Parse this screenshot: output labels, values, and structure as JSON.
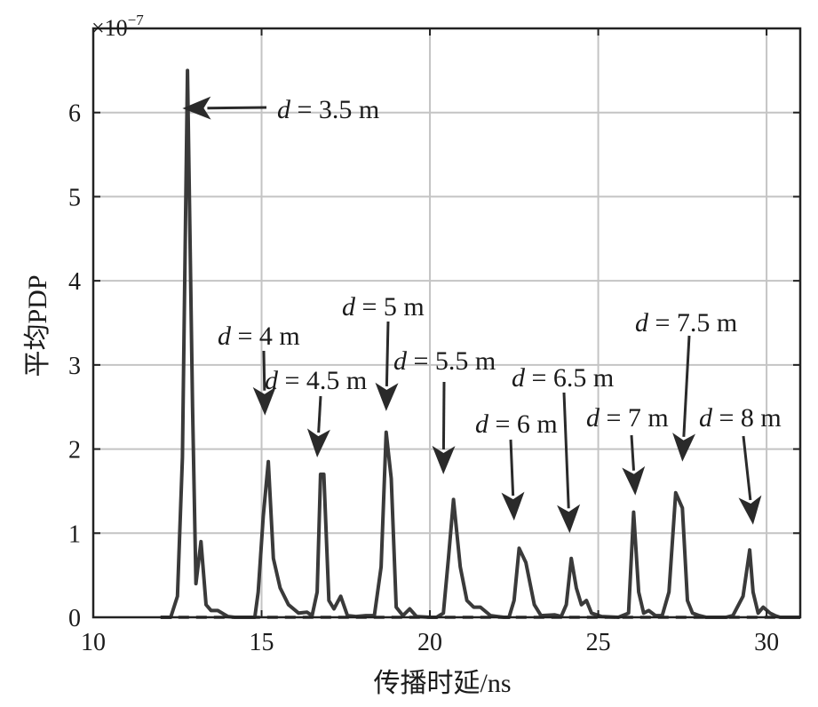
{
  "chart_data": {
    "type": "line",
    "xlabel": "传播时延/ns",
    "ylabel": "平均PDP",
    "y_exponent": "×10",
    "y_exponent_power": "−7",
    "xlim": [
      10,
      31
    ],
    "ylim": [
      0,
      7
    ],
    "grid": true,
    "x_ticks": [
      10,
      15,
      20,
      25,
      30
    ],
    "y_ticks": [
      0,
      1,
      2,
      3,
      4,
      5,
      6
    ],
    "series": [
      {
        "x": [
          12.0,
          12.3,
          12.5,
          12.65,
          12.8,
          12.95,
          13.05,
          13.2,
          13.35,
          13.5,
          13.7,
          14.0,
          14.2,
          14.6,
          14.8,
          14.9,
          15.05,
          15.2,
          15.35,
          15.55,
          15.8,
          16.1,
          16.35,
          16.5,
          16.65,
          16.75,
          16.85,
          17.0,
          17.15,
          17.35,
          17.55,
          17.8,
          18.1,
          18.35,
          18.55,
          18.7,
          18.85,
          19.0,
          19.2,
          19.4,
          19.6,
          20.0,
          20.2,
          20.4,
          20.55,
          20.7,
          20.9,
          21.1,
          21.3,
          21.5,
          21.8,
          22.0,
          22.2,
          22.35,
          22.5,
          22.65,
          22.85,
          23.1,
          23.3,
          23.7,
          23.9,
          24.05,
          24.2,
          24.35,
          24.5,
          24.65,
          24.8,
          25.1,
          25.6,
          25.9,
          26.05,
          26.2,
          26.35,
          26.5,
          26.7,
          26.9,
          27.1,
          27.3,
          27.5,
          27.65,
          27.8,
          28.0,
          28.2,
          28.5,
          28.8,
          29.0,
          29.3,
          29.5,
          29.6,
          29.75,
          29.9,
          30.1,
          30.25,
          30.4,
          30.6,
          31.0
        ],
        "y": [
          0,
          0,
          0.25,
          1.9,
          6.5,
          2.5,
          0.4,
          0.9,
          0.15,
          0.08,
          0.08,
          0.01,
          0,
          0,
          0,
          0.3,
          1.2,
          1.85,
          0.7,
          0.35,
          0.15,
          0.05,
          0.06,
          0.02,
          0.3,
          1.7,
          1.7,
          0.2,
          0.1,
          0.25,
          0.02,
          0.01,
          0.02,
          0.02,
          0.6,
          2.2,
          1.65,
          0.12,
          0.02,
          0.1,
          0.01,
          0,
          0,
          0.05,
          0.7,
          1.4,
          0.6,
          0.2,
          0.12,
          0.12,
          0.02,
          0.01,
          0,
          0,
          0.2,
          0.82,
          0.65,
          0.15,
          0.02,
          0.03,
          0.01,
          0.15,
          0.7,
          0.35,
          0.15,
          0.2,
          0.05,
          0.01,
          0,
          0.05,
          1.25,
          0.3,
          0.05,
          0.08,
          0.02,
          0.02,
          0.3,
          1.48,
          1.3,
          0.2,
          0.05,
          0.02,
          0,
          0,
          0,
          0.02,
          0.25,
          0.8,
          0.3,
          0.05,
          0.12,
          0.05,
          0.02,
          0,
          0,
          0
        ]
      }
    ],
    "annotations": [
      {
        "var": "d",
        "text": " = 3.5 m",
        "target_x": 12.65,
        "target_y": 6.05
      },
      {
        "var": "d",
        "text": " = 4 m",
        "target_x": 15.1,
        "target_y": 2.4
      },
      {
        "var": "d",
        "text": " = 4.5 m",
        "target_x": 16.65,
        "target_y": 1.9
      },
      {
        "var": "d",
        "text": " = 5 m",
        "target_x": 18.7,
        "target_y": 2.45
      },
      {
        "var": "d",
        "text": " = 5.5 m",
        "target_x": 20.4,
        "target_y": 1.7
      },
      {
        "var": "d",
        "text": " = 6 m",
        "target_x": 22.5,
        "target_y": 1.15
      },
      {
        "var": "d",
        "text": " = 6.5 m",
        "target_x": 24.15,
        "target_y": 1.0
      },
      {
        "var": "d",
        "text": " = 7 m",
        "target_x": 26.1,
        "target_y": 1.45
      },
      {
        "var": "d",
        "text": " = 7.5 m",
        "target_x": 27.5,
        "target_y": 1.85
      },
      {
        "var": "d",
        "text": " = 8 m",
        "target_x": 29.6,
        "target_y": 1.1
      }
    ]
  }
}
